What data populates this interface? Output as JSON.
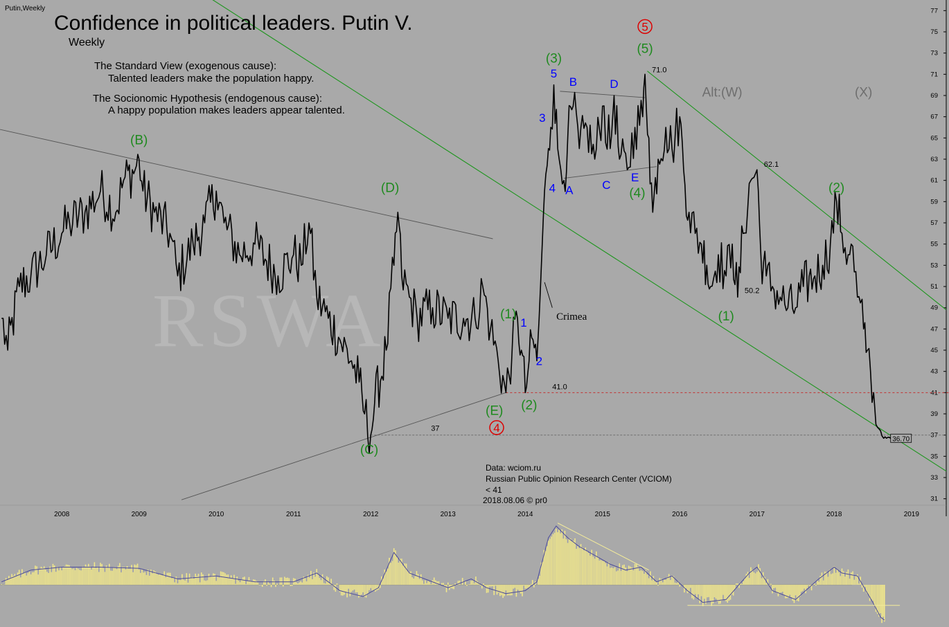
{
  "header": {
    "ticker": "Putin,Weekly",
    "title": "Confidence in political leaders. Putin V.",
    "period": "Weekly"
  },
  "notes": {
    "standard_title": "The Standard View (exogenous cause):",
    "standard_body": "Talented leaders make the population happy.",
    "socio_title": "The Socionomic Hypothesis (endogenous cause):",
    "socio_body": "A happy population makes leaders appear talented."
  },
  "watermark": "RSWA",
  "footer": {
    "line1": "Data: wciom.ru",
    "line2": "Russian Public Opinion Research Center (VCIOM)",
    "line3": "< 41",
    "line4": "2018.08.06 © pr0"
  },
  "colors": {
    "background": "#a9a9a9",
    "price": "#000000",
    "wave_green": "#1f8a1f",
    "wave_blue": "#0000ff",
    "wave_red": "#dd0000",
    "channel": "#1e961e",
    "trendline": "#555555",
    "osc_bar": "#f2e88a",
    "osc_line": "#4a4a9a",
    "alt_label": "#6e6e6e"
  },
  "chart_data": {
    "type": "line",
    "title": "Confidence in political leaders. Putin V.",
    "xlabel": "",
    "ylabel": "",
    "xlim": [
      2007.2,
      2019.45
    ],
    "ylim": [
      30,
      78
    ],
    "x_ticks": [
      "2008",
      "2009",
      "2010",
      "2011",
      "2012",
      "2013",
      "2014",
      "2015",
      "2016",
      "2017",
      "2018",
      "2019"
    ],
    "y_ticks": [
      "31",
      "33",
      "35",
      "37",
      "39",
      "41",
      "43",
      "45",
      "47",
      "49",
      "51",
      "53",
      "55",
      "57",
      "59",
      "61",
      "63",
      "65",
      "67",
      "69",
      "71",
      "73",
      "75",
      "77"
    ],
    "grid": false,
    "series": [
      {
        "name": "Putin",
        "anchors": [
          [
            2007.22,
            48
          ],
          [
            2007.3,
            45
          ],
          [
            2007.45,
            51
          ],
          [
            2007.6,
            52
          ],
          [
            2007.8,
            54
          ],
          [
            2008.0,
            56
          ],
          [
            2008.1,
            57
          ],
          [
            2008.3,
            58
          ],
          [
            2008.5,
            60
          ],
          [
            2008.7,
            58
          ],
          [
            2008.8,
            61
          ],
          [
            2008.95,
            62
          ],
          [
            2009.0,
            63
          ],
          [
            2009.05,
            60
          ],
          [
            2009.2,
            58
          ],
          [
            2009.4,
            56
          ],
          [
            2009.5,
            52
          ],
          [
            2009.7,
            55
          ],
          [
            2009.85,
            57
          ],
          [
            2010.0,
            60
          ],
          [
            2010.1,
            57
          ],
          [
            2010.3,
            54
          ],
          [
            2010.5,
            55
          ],
          [
            2010.8,
            52
          ],
          [
            2011.0,
            54
          ],
          [
            2011.1,
            53
          ],
          [
            2011.2,
            57
          ],
          [
            2011.3,
            50
          ],
          [
            2011.45,
            48
          ],
          [
            2011.6,
            46
          ],
          [
            2011.75,
            44
          ],
          [
            2011.85,
            42
          ],
          [
            2011.92,
            39
          ],
          [
            2012.0,
            37
          ],
          [
            2012.05,
            40
          ],
          [
            2012.2,
            45
          ],
          [
            2012.3,
            53
          ],
          [
            2012.35,
            58
          ],
          [
            2012.4,
            52
          ],
          [
            2012.5,
            50
          ],
          [
            2012.6,
            48
          ],
          [
            2012.8,
            49
          ],
          [
            2013.0,
            48
          ],
          [
            2013.2,
            48
          ],
          [
            2013.35,
            48
          ],
          [
            2013.45,
            51
          ],
          [
            2013.55,
            47
          ],
          [
            2013.65,
            44
          ],
          [
            2013.75,
            41
          ],
          [
            2013.83,
            45
          ],
          [
            2013.9,
            48
          ],
          [
            2013.95,
            45
          ],
          [
            2014.0,
            41
          ],
          [
            2014.05,
            44
          ],
          [
            2014.1,
            46
          ],
          [
            2014.15,
            44
          ],
          [
            2014.18,
            48
          ],
          [
            2014.22,
            55
          ],
          [
            2014.25,
            60
          ],
          [
            2014.3,
            64
          ],
          [
            2014.33,
            66
          ],
          [
            2014.37,
            70
          ],
          [
            2014.42,
            64
          ],
          [
            2014.46,
            62
          ],
          [
            2014.5,
            61
          ],
          [
            2014.55,
            65
          ],
          [
            2014.62,
            68
          ],
          [
            2014.7,
            64
          ],
          [
            2014.8,
            66
          ],
          [
            2014.9,
            63
          ],
          [
            2015.0,
            68
          ],
          [
            2015.1,
            64
          ],
          [
            2015.15,
            69
          ],
          [
            2015.22,
            63
          ],
          [
            2015.32,
            62
          ],
          [
            2015.42,
            66
          ],
          [
            2015.52,
            67
          ],
          [
            2015.55,
            71
          ],
          [
            2015.6,
            65
          ],
          [
            2015.65,
            58
          ],
          [
            2015.72,
            63
          ],
          [
            2015.82,
            66
          ],
          [
            2015.9,
            64
          ],
          [
            2016.0,
            67
          ],
          [
            2016.05,
            62
          ],
          [
            2016.12,
            58
          ],
          [
            2016.2,
            56
          ],
          [
            2016.28,
            55
          ],
          [
            2016.35,
            53
          ],
          [
            2016.4,
            51
          ],
          [
            2016.5,
            54
          ],
          [
            2016.6,
            52
          ],
          [
            2016.68,
            55
          ],
          [
            2016.75,
            50
          ],
          [
            2016.82,
            56
          ],
          [
            2016.92,
            61
          ],
          [
            2017.0,
            62
          ],
          [
            2017.05,
            54
          ],
          [
            2017.12,
            52
          ],
          [
            2017.2,
            51
          ],
          [
            2017.3,
            50
          ],
          [
            2017.4,
            49
          ],
          [
            2017.5,
            49
          ],
          [
            2017.6,
            51
          ],
          [
            2017.75,
            52
          ],
          [
            2017.85,
            53
          ],
          [
            2017.95,
            55
          ],
          [
            2018.03,
            59
          ],
          [
            2018.1,
            56
          ],
          [
            2018.18,
            54
          ],
          [
            2018.22,
            55
          ],
          [
            2018.3,
            50
          ],
          [
            2018.38,
            47
          ],
          [
            2018.43,
            45
          ],
          [
            2018.47,
            43
          ],
          [
            2018.51,
            41
          ],
          [
            2018.54,
            38
          ],
          [
            2018.6,
            37.4
          ],
          [
            2018.64,
            36.7
          ],
          [
            2018.73,
            36.7
          ]
        ]
      },
      {
        "name": "Oscillator",
        "anchors": [
          [
            2007.22,
            0.05
          ],
          [
            2007.6,
            0.25
          ],
          [
            2008.0,
            0.3
          ],
          [
            2008.5,
            0.3
          ],
          [
            2009.0,
            0.28
          ],
          [
            2009.5,
            0.1
          ],
          [
            2010.0,
            0.15
          ],
          [
            2010.5,
            0.05
          ],
          [
            2011.0,
            0.05
          ],
          [
            2011.3,
            0.2
          ],
          [
            2011.6,
            -0.1
          ],
          [
            2011.9,
            -0.2
          ],
          [
            2012.1,
            -0.05
          ],
          [
            2012.3,
            0.55
          ],
          [
            2012.5,
            0.2
          ],
          [
            2012.8,
            0.05
          ],
          [
            2013.0,
            -0.05
          ],
          [
            2013.3,
            0.1
          ],
          [
            2013.5,
            -0.05
          ],
          [
            2013.75,
            -0.15
          ],
          [
            2014.0,
            -0.1
          ],
          [
            2014.15,
            0.05
          ],
          [
            2014.3,
            0.8
          ],
          [
            2014.4,
            1.0
          ],
          [
            2014.55,
            0.8
          ],
          [
            2014.7,
            0.65
          ],
          [
            2014.9,
            0.5
          ],
          [
            2015.1,
            0.35
          ],
          [
            2015.3,
            0.25
          ],
          [
            2015.5,
            0.3
          ],
          [
            2015.7,
            0.05
          ],
          [
            2015.9,
            0.15
          ],
          [
            2016.1,
            -0.1
          ],
          [
            2016.3,
            -0.3
          ],
          [
            2016.6,
            -0.25
          ],
          [
            2016.9,
            0.2
          ],
          [
            2017.0,
            0.3
          ],
          [
            2017.2,
            -0.1
          ],
          [
            2017.5,
            -0.25
          ],
          [
            2017.8,
            0.1
          ],
          [
            2018.0,
            0.3
          ],
          [
            2018.1,
            0.2
          ],
          [
            2018.3,
            0.15
          ],
          [
            2018.5,
            -0.3
          ],
          [
            2018.6,
            -0.55
          ],
          [
            2018.65,
            -0.6
          ]
        ]
      }
    ],
    "reference_lines": [
      {
        "label": "41.0",
        "value": 41
      },
      {
        "label": "37",
        "value": 37
      },
      {
        "label": "36.70",
        "value": 36.7
      }
    ],
    "value_labels": [
      {
        "text": "71.0",
        "x": 2015.55,
        "y": 71
      },
      {
        "text": "62.1",
        "x": 2017.0,
        "y": 62.1
      },
      {
        "text": "50.2",
        "x": 2016.75,
        "y": 50.2
      }
    ],
    "trendlines": [
      {
        "kind": "resistance",
        "from": [
          2007.2,
          65.8
        ],
        "to": [
          2013.58,
          55.5
        ]
      },
      {
        "kind": "support",
        "from": [
          2009.55,
          30.9
        ],
        "to": [
          2013.75,
          41
        ]
      },
      {
        "kind": "channel",
        "from": [
          2009.85,
          78.5
        ],
        "to": [
          2019.45,
          33.6
        ]
      },
      {
        "kind": "channel",
        "from": [
          2015.58,
          71.3
        ],
        "to": [
          2019.45,
          48.8
        ]
      },
      {
        "kind": "triangle",
        "from": [
          2014.45,
          69.4
        ],
        "to": [
          2015.55,
          68.8
        ]
      },
      {
        "kind": "triangle",
        "from": [
          2014.5,
          61.2
        ],
        "to": [
          2015.7,
          62.3
        ]
      },
      {
        "kind": "pointer",
        "from": [
          2014.25,
          51.4
        ],
        "to": [
          2014.35,
          49.0
        ]
      }
    ],
    "wave_labels": [
      {
        "text": "(B)",
        "x": 2009.0,
        "y": 64.8,
        "color": "green"
      },
      {
        "text": "(D)",
        "x": 2012.25,
        "y": 60.3,
        "color": "green"
      },
      {
        "text": "(C)",
        "x": 2011.98,
        "y": 35.6,
        "color": "green"
      },
      {
        "text": "(E)",
        "x": 2013.6,
        "y": 39.3,
        "color": "green"
      },
      {
        "text": "(1)",
        "x": 2013.78,
        "y": 48.4,
        "color": "green"
      },
      {
        "text": "(2)",
        "x": 2014.05,
        "y": 39.8,
        "color": "green"
      },
      {
        "text": "(3)",
        "x": 2014.37,
        "y": 72.5,
        "color": "green"
      },
      {
        "text": "(4)",
        "x": 2015.45,
        "y": 59.8,
        "color": "green"
      },
      {
        "text": "(5)",
        "x": 2015.55,
        "y": 73.4,
        "color": "green"
      },
      {
        "text": "(1)",
        "x": 2016.6,
        "y": 48.2,
        "color": "green"
      },
      {
        "text": "(2)",
        "x": 2018.03,
        "y": 60.3,
        "color": "green"
      },
      {
        "text": "1",
        "x": 2013.98,
        "y": 47.6,
        "color": "blue"
      },
      {
        "text": "2",
        "x": 2014.18,
        "y": 44.0,
        "color": "blue"
      },
      {
        "text": "3",
        "x": 2014.22,
        "y": 66.9,
        "color": "blue"
      },
      {
        "text": "4",
        "x": 2014.35,
        "y": 60.3,
        "color": "blue"
      },
      {
        "text": "5",
        "x": 2014.37,
        "y": 71.1,
        "color": "blue"
      },
      {
        "text": "A",
        "x": 2014.57,
        "y": 60.1,
        "color": "blue"
      },
      {
        "text": "B",
        "x": 2014.62,
        "y": 70.3,
        "color": "blue"
      },
      {
        "text": "C",
        "x": 2015.05,
        "y": 60.6,
        "color": "blue"
      },
      {
        "text": "D",
        "x": 2015.15,
        "y": 70.1,
        "color": "blue"
      },
      {
        "text": "E",
        "x": 2015.42,
        "y": 61.3,
        "color": "blue"
      },
      {
        "text": "4",
        "x": 2013.63,
        "y": 37.7,
        "color": "red",
        "circled": true
      },
      {
        "text": "5",
        "x": 2015.55,
        "y": 75.5,
        "color": "red",
        "circled": true
      },
      {
        "text": "Alt:(W)",
        "x": 2016.55,
        "y": 69.3,
        "color": "gray"
      },
      {
        "text": "(X)",
        "x": 2018.38,
        "y": 69.3,
        "color": "gray"
      }
    ],
    "annotations": [
      {
        "text": "Crimea",
        "x": 2014.6,
        "y": 48.2
      }
    ]
  }
}
